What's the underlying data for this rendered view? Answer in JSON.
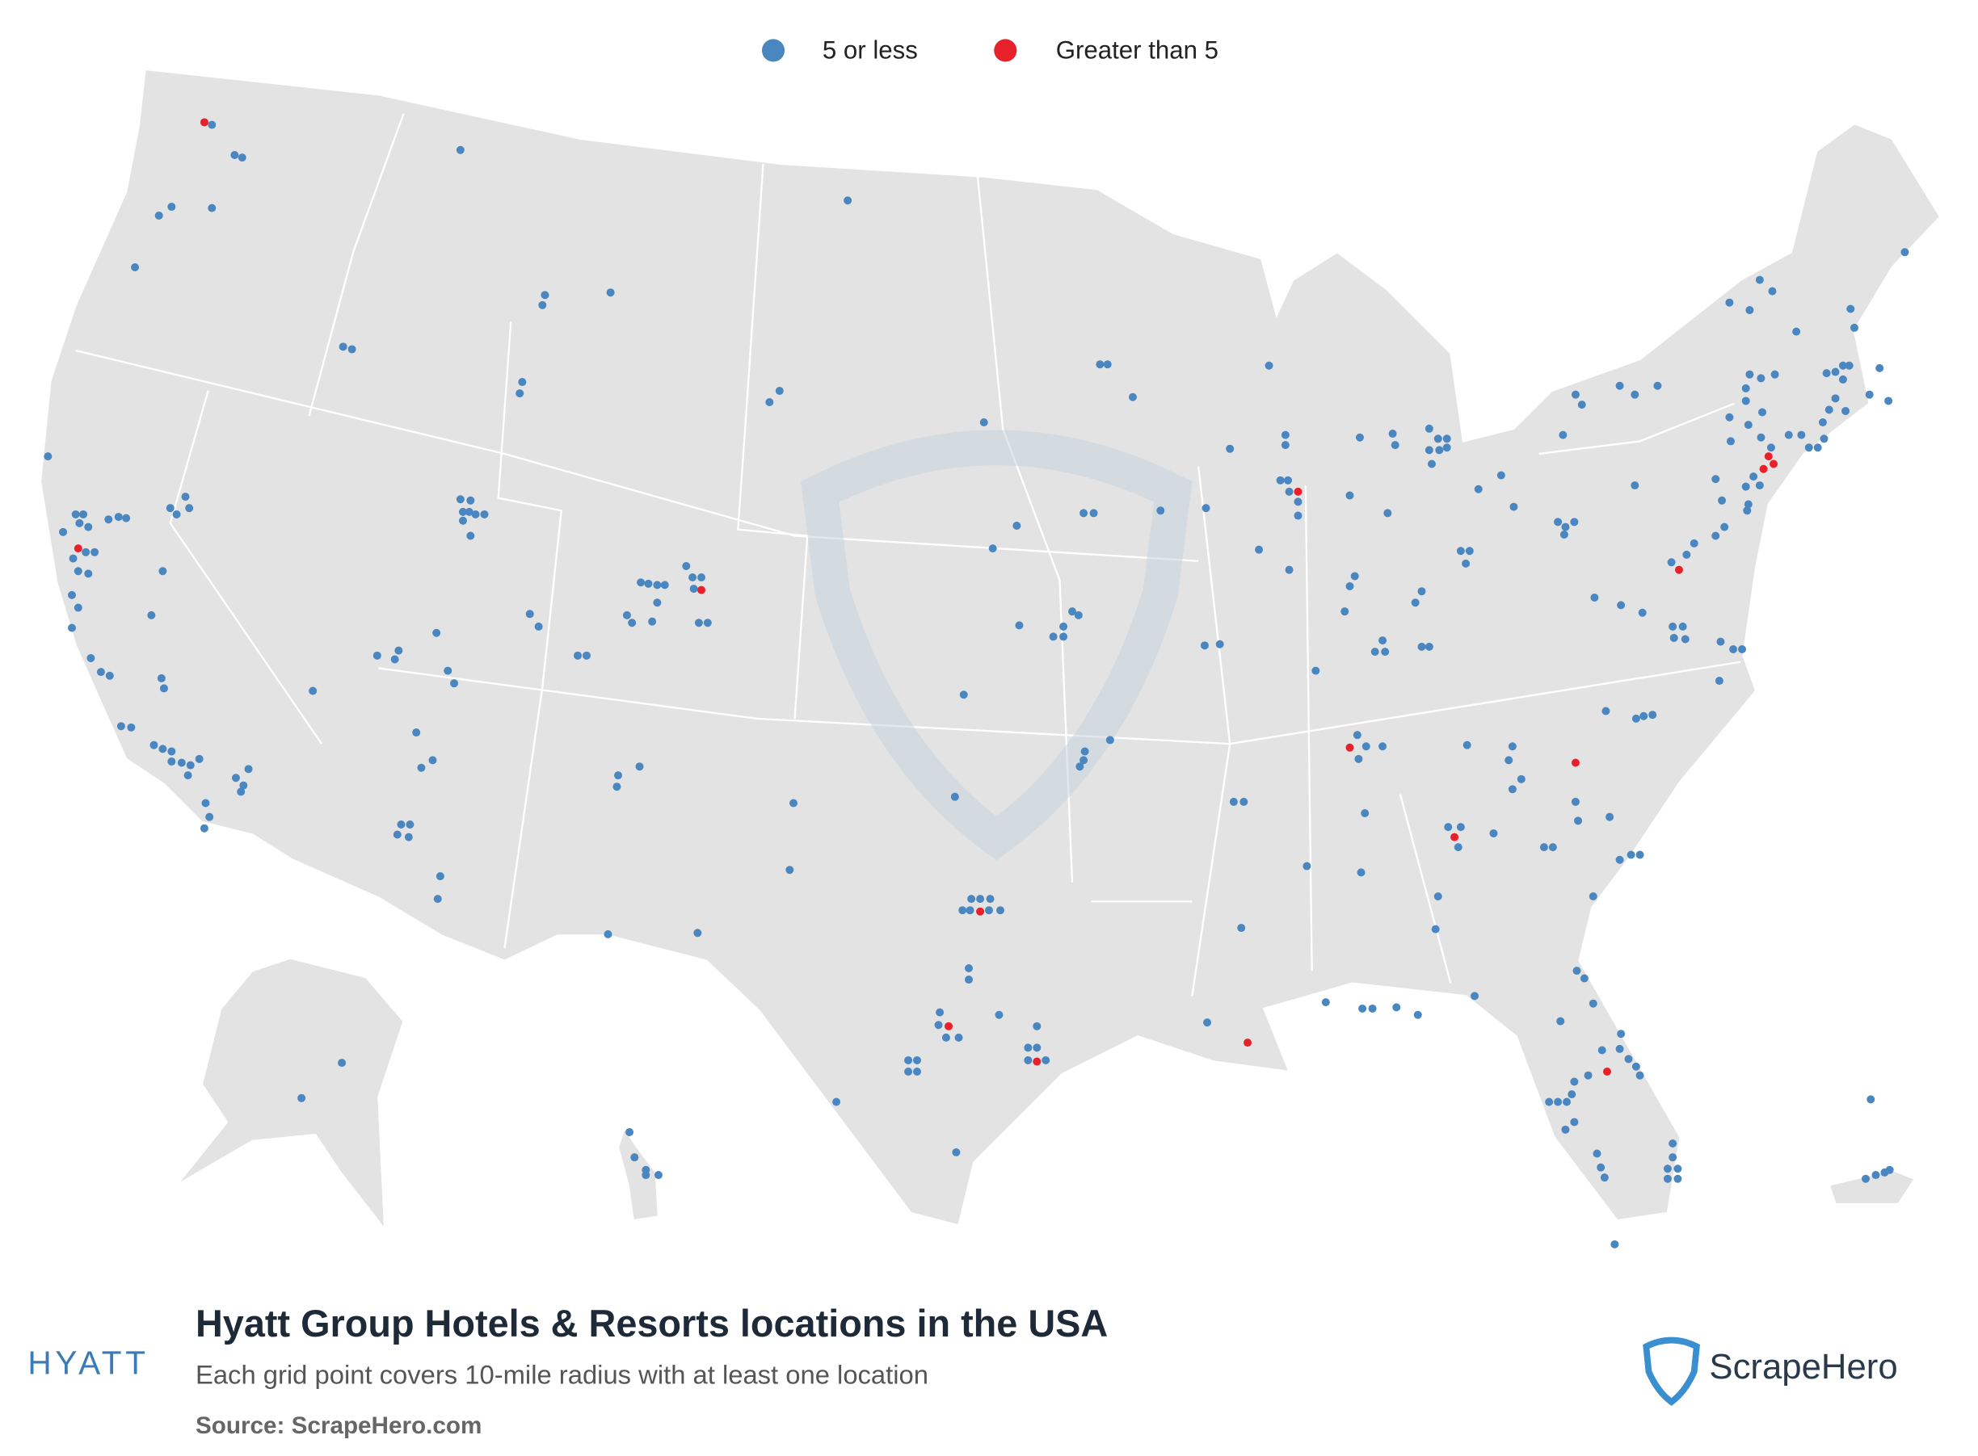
{
  "legend": {
    "items": [
      {
        "label": "5 or less",
        "color": "#4a86c0"
      },
      {
        "label": "Greater than 5",
        "color": "#e8202a"
      }
    ]
  },
  "title": "Hyatt Group Hotels & Resorts locations in the USA",
  "subtitle": "Each grid point covers 10-mile radius with at least one location",
  "source": "Source: ScrapeHero.com",
  "logos": {
    "left": "HYATT",
    "right": "ScrapeHero"
  }
}
